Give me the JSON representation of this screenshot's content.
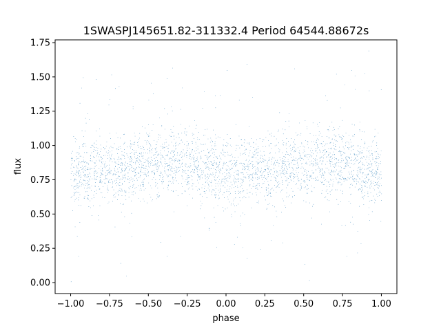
{
  "chart_data": {
    "type": "scatter",
    "title": "1SWASPJ145651.82-311332.4 Period 64544.88672s",
    "xlabel": "phase",
    "ylabel": "flux",
    "xlim": [
      -1.1,
      1.1
    ],
    "ylim": [
      -0.08,
      1.77
    ],
    "xticks": [
      -1.0,
      -0.75,
      -0.5,
      -0.25,
      0.0,
      0.25,
      0.5,
      0.75,
      1.0
    ],
    "xtick_labels": [
      "−1.00",
      "−0.75",
      "−0.50",
      "−0.25",
      "0.00",
      "0.25",
      "0.50",
      "0.75",
      "1.00"
    ],
    "yticks": [
      0.0,
      0.25,
      0.5,
      0.75,
      1.0,
      1.25,
      1.5,
      1.75
    ],
    "ytick_labels": [
      "0.00",
      "0.25",
      "0.50",
      "0.75",
      "1.00",
      "1.25",
      "1.50",
      "1.75"
    ],
    "grid": false,
    "marker_color": "#1f77b4",
    "series": [
      {
        "x_range": [
          -1.0,
          1.0
        ],
        "mean_flux_curve": {
          "phase": [
            -1.0,
            -0.75,
            -0.5,
            -0.3,
            0.0,
            0.25,
            0.5,
            0.7,
            1.0
          ],
          "flux": [
            0.8,
            0.82,
            0.86,
            0.88,
            0.8,
            0.82,
            0.86,
            0.88,
            0.8
          ]
        },
        "core_spread": 0.12,
        "outlier_range": [
          0.0,
          1.7
        ],
        "approx_points": 60000
      }
    ]
  }
}
